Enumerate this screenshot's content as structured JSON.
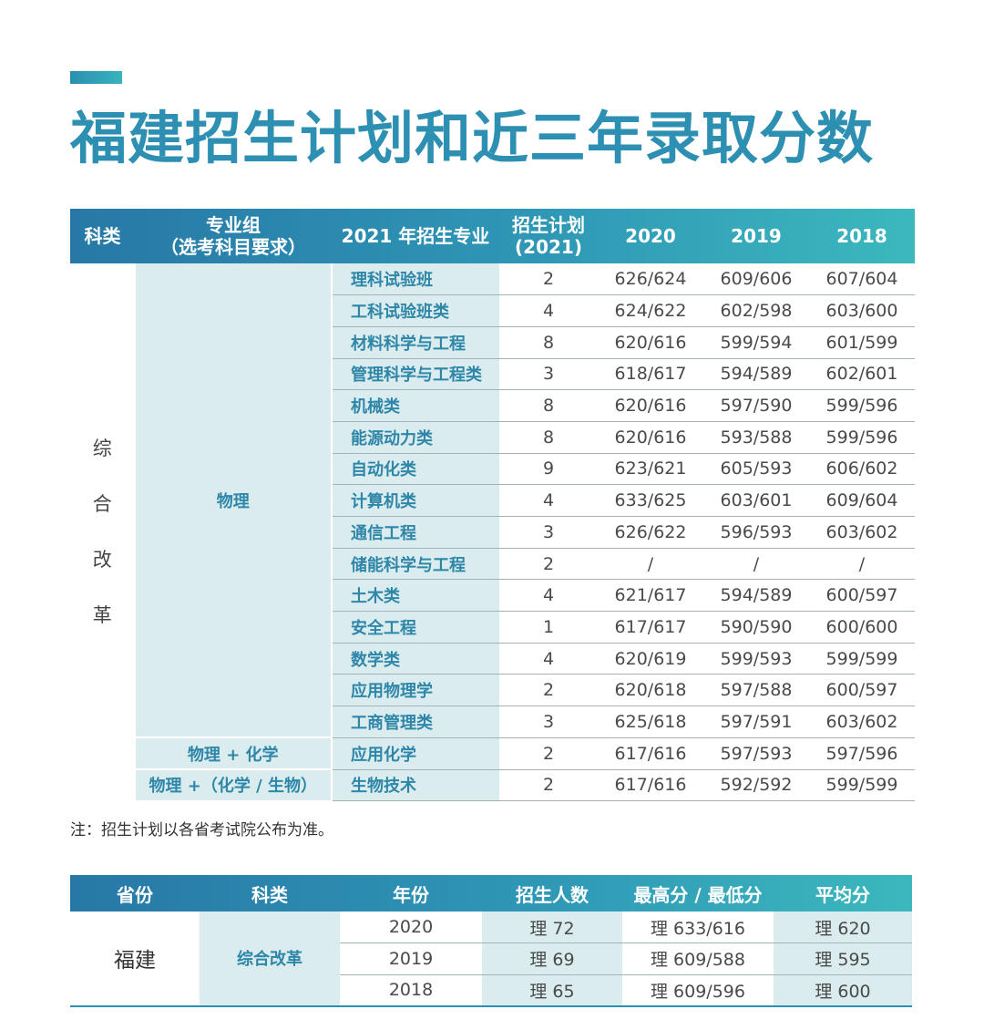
{
  "title": "福建招生计划和近三年录取分数",
  "table1": {
    "headers": {
      "category": "科类",
      "group_line1": "专业组",
      "group_line2": "（选考科目要求）",
      "major": "2021 年招生专业",
      "plan_line1": "招生计划",
      "plan_line2": "(2021)",
      "y2020": "2020",
      "y2019": "2019",
      "y2018": "2018"
    },
    "category_chars": [
      "综",
      "合",
      "改",
      "革"
    ],
    "groups": [
      "物理",
      "物理 + 化学",
      "物理 +（化学 / 生物）"
    ],
    "rows": [
      {
        "major": "理科试验班",
        "plan": "2",
        "y2020": "626/624",
        "y2019": "609/606",
        "y2018": "607/604"
      },
      {
        "major": "工科试验班类",
        "plan": "4",
        "y2020": "624/622",
        "y2019": "602/598",
        "y2018": "603/600"
      },
      {
        "major": "材料科学与工程",
        "plan": "8",
        "y2020": "620/616",
        "y2019": "599/594",
        "y2018": "601/599"
      },
      {
        "major": "管理科学与工程类",
        "plan": "3",
        "y2020": "618/617",
        "y2019": "594/589",
        "y2018": "602/601"
      },
      {
        "major": "机械类",
        "plan": "8",
        "y2020": "620/616",
        "y2019": "597/590",
        "y2018": "599/596"
      },
      {
        "major": "能源动力类",
        "plan": "8",
        "y2020": "620/616",
        "y2019": "593/588",
        "y2018": "599/596"
      },
      {
        "major": "自动化类",
        "plan": "9",
        "y2020": "623/621",
        "y2019": "605/593",
        "y2018": "606/602"
      },
      {
        "major": "计算机类",
        "plan": "4",
        "y2020": "633/625",
        "y2019": "603/601",
        "y2018": "609/604"
      },
      {
        "major": "通信工程",
        "plan": "3",
        "y2020": "626/622",
        "y2019": "596/593",
        "y2018": "603/602"
      },
      {
        "major": "储能科学与工程",
        "plan": "2",
        "y2020": "/",
        "y2019": "/",
        "y2018": "/"
      },
      {
        "major": "土木类",
        "plan": "4",
        "y2020": "621/617",
        "y2019": "594/589",
        "y2018": "600/597"
      },
      {
        "major": "安全工程",
        "plan": "1",
        "y2020": "617/617",
        "y2019": "590/590",
        "y2018": "600/600"
      },
      {
        "major": "数学类",
        "plan": "4",
        "y2020": "620/619",
        "y2019": "599/593",
        "y2018": "599/599"
      },
      {
        "major": "应用物理学",
        "plan": "2",
        "y2020": "620/618",
        "y2019": "597/588",
        "y2018": "600/597"
      },
      {
        "major": "工商管理类",
        "plan": "3",
        "y2020": "625/618",
        "y2019": "597/591",
        "y2018": "603/602"
      },
      {
        "major": "应用化学",
        "plan": "2",
        "y2020": "617/616",
        "y2019": "597/593",
        "y2018": "597/596"
      },
      {
        "major": "生物技术",
        "plan": "2",
        "y2020": "617/616",
        "y2019": "592/592",
        "y2018": "599/599"
      }
    ]
  },
  "note": "注：招生计划以各省考试院公布为准。",
  "table2": {
    "headers": {
      "province": "省份",
      "category": "科类",
      "year": "年份",
      "enrolled": "招生人数",
      "max_min": "最高分 / 最低分",
      "average": "平均分"
    },
    "province": "福建",
    "category": "综合改革",
    "rows": [
      {
        "year": "2020",
        "enrolled": "理 72",
        "max_min": "理 633/616",
        "average": "理 620"
      },
      {
        "year": "2019",
        "enrolled": "理 69",
        "max_min": "理 609/588",
        "average": "理 595"
      },
      {
        "year": "2018",
        "enrolled": "理 65",
        "max_min": "理 609/596",
        "average": "理 600"
      }
    ]
  }
}
